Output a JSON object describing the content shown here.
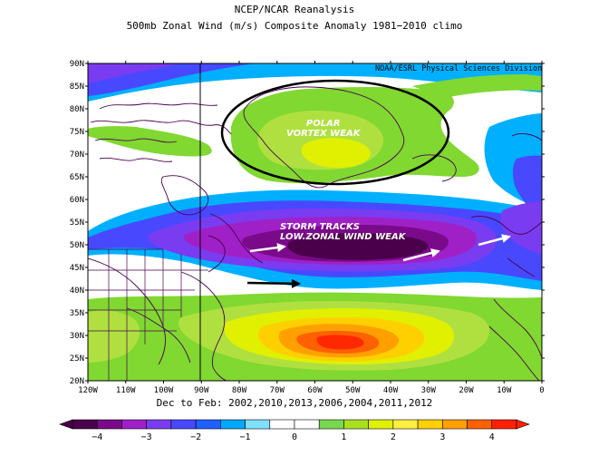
{
  "title": "NCEP/NCAR Reanalysis",
  "subtitle": "500mb Zonal Wind (m/s) Composite Anomaly 1981−2010 climo",
  "credit": "NOAA/ESRL Physical Sciences Division",
  "period": "Dec to Feb: 2002,2010,2013,2006,2004,2011,2012",
  "annotations": {
    "polar_line1": "POLAR",
    "polar_line2": "VORTEX WEAK",
    "storm_line1": "STORM TRACKS",
    "storm_line2": "LOW.ZONAL WIND WEAK"
  },
  "lat_labels": [
    "90N",
    "85N",
    "80N",
    "75N",
    "70N",
    "65N",
    "60N",
    "55N",
    "50N",
    "45N",
    "40N",
    "35N",
    "30N",
    "25N",
    "20N"
  ],
  "lon_labels": [
    "120W",
    "110W",
    "100W",
    "90W",
    "80W",
    "70W",
    "60W",
    "50W",
    "40W",
    "30W",
    "20W",
    "10W",
    "0"
  ],
  "colorbar": {
    "labels": [
      "−4",
      "−3",
      "−2",
      "−1",
      "0",
      "1",
      "2",
      "3",
      "4"
    ],
    "colors": [
      "#4a004a",
      "#7a0a8a",
      "#a020c8",
      "#7a3cf0",
      "#4848ff",
      "#2060ff",
      "#00a8ff",
      "#80e0ff",
      "#ffffff",
      "#ffffff",
      "#78d850",
      "#a8e020",
      "#e0f000",
      "#fff040",
      "#ffd000",
      "#ffa000",
      "#ff6000",
      "#ff2000"
    ]
  },
  "colors": {
    "deep_negative": "#4a004a",
    "purple": "#a020c8",
    "blue": "#4848ff",
    "light_blue": "#00b0ff",
    "green": "#80d830",
    "light_green": "#b0e040",
    "yellow": "#f0f000",
    "orange": "#ffa000",
    "red": "#ff2800",
    "coast": "#4b0050"
  }
}
